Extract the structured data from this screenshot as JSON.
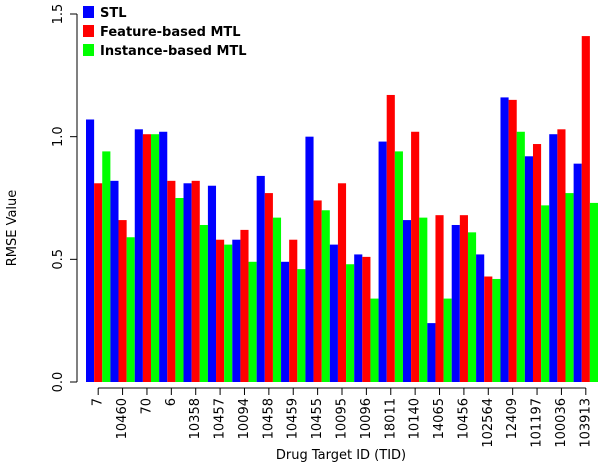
{
  "chart_data": {
    "type": "bar",
    "xlabel": "Drug Target ID (TID)",
    "ylabel": "RMSE Value",
    "ylim": [
      0,
      1.5
    ],
    "yticks": [
      "0.0",
      "0.5",
      "1.0",
      "1.5"
    ],
    "grid": false,
    "legend_position": "top-left",
    "categories": [
      "7",
      "10460",
      "70",
      "6",
      "10358",
      "10457",
      "10094",
      "10458",
      "10459",
      "10455",
      "10095",
      "10096",
      "18011",
      "10140",
      "14065",
      "10456",
      "102564",
      "12409",
      "101197",
      "100036",
      "103913"
    ],
    "series": [
      {
        "name": "STL",
        "color": "#0000ff",
        "values": [
          1.07,
          0.82,
          1.03,
          1.02,
          0.81,
          0.8,
          0.58,
          0.84,
          0.49,
          1.0,
          0.56,
          0.52,
          0.98,
          0.66,
          0.24,
          0.64,
          0.52,
          1.16,
          0.92,
          1.01,
          0.89
        ]
      },
      {
        "name": "Feature-based MTL",
        "color": "#ff0000",
        "values": [
          0.81,
          0.66,
          1.01,
          0.82,
          0.82,
          0.58,
          0.62,
          0.77,
          0.58,
          0.74,
          0.81,
          0.51,
          1.17,
          1.02,
          0.68,
          0.68,
          0.43,
          1.15,
          0.97,
          1.03,
          1.41
        ]
      },
      {
        "name": "Instance-based MTL",
        "color": "#00ff00",
        "values": [
          0.94,
          0.59,
          1.01,
          0.75,
          0.64,
          0.56,
          0.49,
          0.67,
          0.46,
          0.7,
          0.48,
          0.34,
          0.94,
          0.67,
          0.34,
          0.61,
          0.42,
          1.02,
          0.72,
          0.77,
          0.73
        ]
      }
    ]
  }
}
